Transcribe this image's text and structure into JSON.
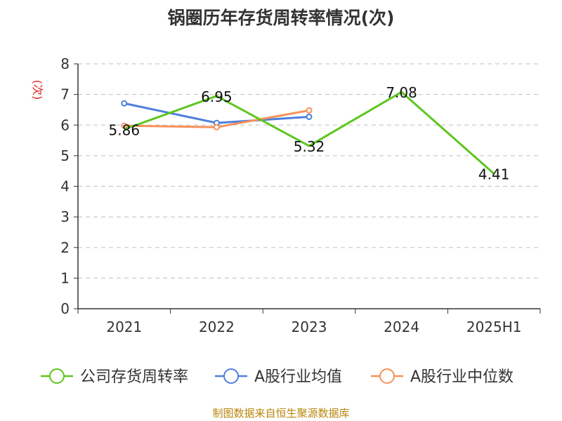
{
  "chart_data": {
    "type": "line",
    "title": "锅圈历年存货周转率情况(次)",
    "ylabel": "(次)",
    "categories": [
      "2021",
      "2022",
      "2023",
      "2024",
      "2025H1"
    ],
    "ylim": [
      0,
      8
    ],
    "yticks": [
      "0",
      "1",
      "2",
      "3",
      "4",
      "5",
      "6",
      "7",
      "8"
    ],
    "grid": true,
    "legend_position": "bottom",
    "series": [
      {
        "name": "公司存货周转率",
        "color": "#5cc61e",
        "values": [
          5.86,
          6.95,
          5.32,
          7.08,
          4.41
        ],
        "labels": [
          "5.86",
          "6.95",
          "5.32",
          "7.08",
          "4.41"
        ]
      },
      {
        "name": "A股行业均值",
        "color": "#4e7fdc",
        "values": [
          6.71,
          6.07,
          6.27,
          null,
          null
        ]
      },
      {
        "name": "A股行业中位数",
        "color": "#f5925a",
        "values": [
          5.98,
          5.93,
          6.48,
          null,
          null
        ]
      }
    ]
  },
  "footer": {
    "source": "制图数据来自恒生聚源数据库"
  }
}
